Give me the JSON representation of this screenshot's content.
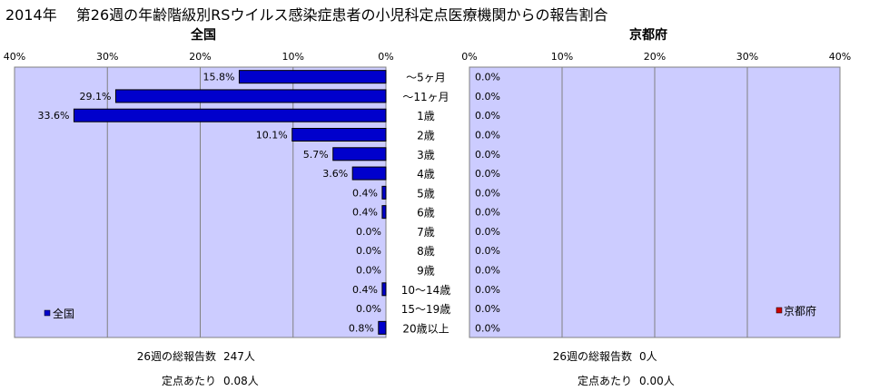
{
  "main_title": "2014年　 第26週の年齢階級別RSウイルス感染症患者の小児科定点医療機関からの報告割合",
  "chart_data": [
    {
      "type": "bar",
      "orientation": "horizontal",
      "direction": "right-to-left",
      "title": "全国",
      "categories": [
        "～5ヶ月",
        "～11ヶ月",
        "1歳",
        "2歳",
        "3歳",
        "4歳",
        "5歳",
        "6歳",
        "7歳",
        "8歳",
        "9歳",
        "10～14歳",
        "15～19歳",
        "20歳以上"
      ],
      "series": [
        {
          "name": "全国",
          "values": [
            15.8,
            29.1,
            33.6,
            10.1,
            5.7,
            3.6,
            0.4,
            0.4,
            0.0,
            0.0,
            0.0,
            0.4,
            0.0,
            0.8
          ],
          "color": "#0000cc"
        }
      ],
      "data_labels": [
        "15.8%",
        "29.1%",
        "33.6%",
        "10.1%",
        "5.7%",
        "3.6%",
        "0.4%",
        "0.4%",
        "0.0%",
        "0.0%",
        "0.0%",
        "0.4%",
        "0.0%",
        "0.8%"
      ],
      "xlim": [
        0,
        40
      ],
      "x_ticks": [
        "40%",
        "30%",
        "20%",
        "10%",
        "0%"
      ],
      "grid": true,
      "legend_position": "bottom-left",
      "plot_background": "#ccccff"
    },
    {
      "type": "bar",
      "orientation": "horizontal",
      "direction": "left-to-right",
      "title": "京都府",
      "categories": [
        "～5ヶ月",
        "～11ヶ月",
        "1歳",
        "2歳",
        "3歳",
        "4歳",
        "5歳",
        "6歳",
        "7歳",
        "8歳",
        "9歳",
        "10～14歳",
        "15～19歳",
        "20歳以上"
      ],
      "series": [
        {
          "name": "京都府",
          "values": [
            0,
            0,
            0,
            0,
            0,
            0,
            0,
            0,
            0,
            0,
            0,
            0,
            0,
            0
          ],
          "color": "#cc0000"
        }
      ],
      "data_labels": [
        "0.0%",
        "0.0%",
        "0.0%",
        "0.0%",
        "0.0%",
        "0.0%",
        "0.0%",
        "0.0%",
        "0.0%",
        "0.0%",
        "0.0%",
        "0.0%",
        "0.0%",
        "0.0%"
      ],
      "xlim": [
        0,
        40
      ],
      "x_ticks": [
        "0%",
        "10%",
        "20%",
        "30%",
        "40%"
      ],
      "grid": true,
      "legend_position": "bottom-right",
      "plot_background": "#ccccff"
    }
  ],
  "stats": {
    "national": {
      "total_label": "26週の総報告数",
      "total_value": "247人",
      "per_label": "定点あたり",
      "per_value": "0.08人"
    },
    "kyoto": {
      "total_label": "26週の総報告数",
      "total_value": "0人",
      "per_label": "定点あたり",
      "per_value": "0.00人"
    }
  }
}
